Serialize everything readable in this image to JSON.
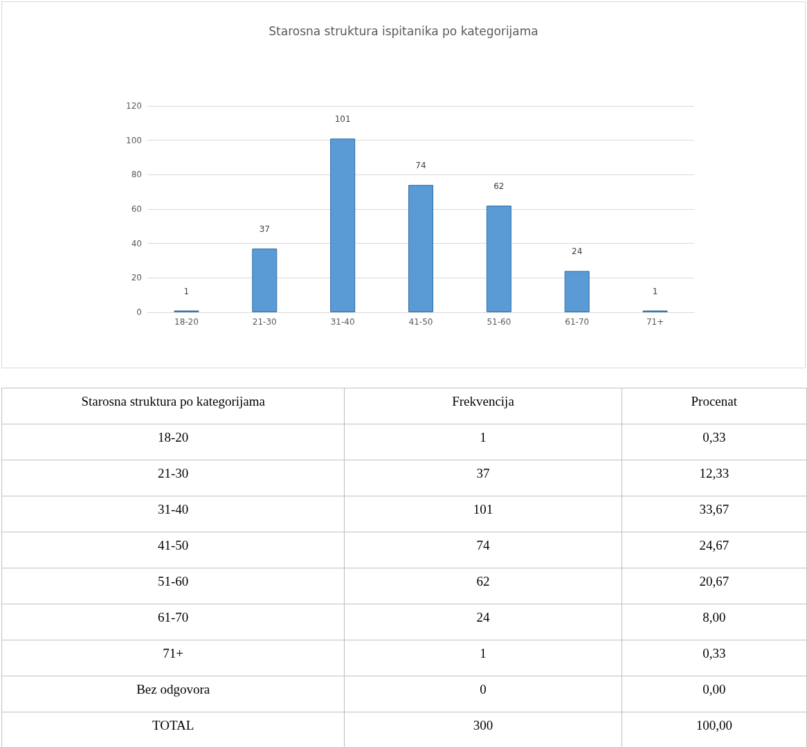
{
  "chart_data": [
    {
      "type": "bar",
      "title": "Starosna struktura ispitanika po kategorijama",
      "categories": [
        "18-20",
        "21-30",
        "31-40",
        "41-50",
        "51-60",
        "61-70",
        "71+"
      ],
      "values": [
        1,
        37,
        101,
        74,
        62,
        24,
        1
      ],
      "color": "#5b9bd5",
      "ylim": [
        0,
        120
      ],
      "yticks": [
        0,
        20,
        40,
        60,
        80,
        100,
        120
      ],
      "grid": "y",
      "data_labels": true
    },
    {
      "type": "other",
      "xlabel": "Starosna struktura po kategorijama",
      "categories": [
        "18-20",
        "21-30",
        "31-40",
        "41-50",
        "51-60",
        "61-70",
        "71+",
        "Bez odgovora",
        "TOTAL"
      ],
      "series": [
        {
          "name": "Frekvencija",
          "values": [
            1,
            37,
            101,
            74,
            62,
            24,
            1,
            0,
            300
          ]
        },
        {
          "name": "Procenat",
          "values": [
            0.33,
            12.33,
            33.67,
            24.67,
            20.67,
            8.0,
            0.33,
            0.0,
            100.0
          ],
          "value_labels": [
            "0,33",
            "12,33",
            "33,67",
            "24,67",
            "20,67",
            "8,00",
            "0,33",
            "0,00",
            "100,00"
          ]
        }
      ],
      "data_labels": true
    }
  ]
}
